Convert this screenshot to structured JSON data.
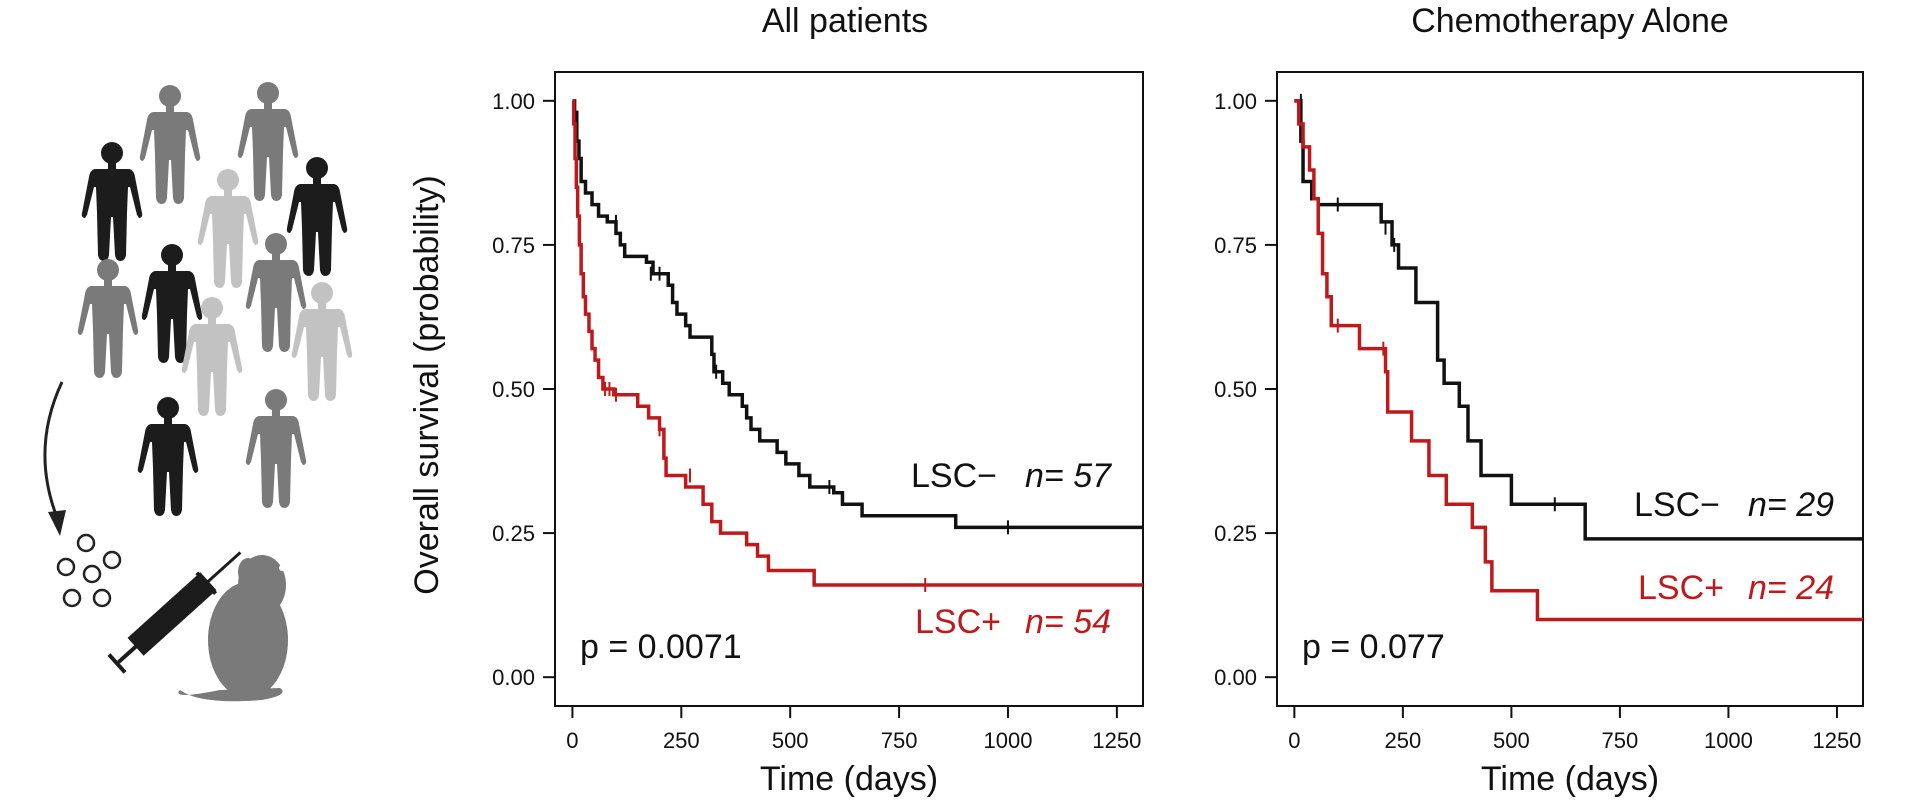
{
  "chart_data": [
    {
      "type": "line",
      "subtype": "kaplan-meier",
      "title": "All patients",
      "xlabel": "Time (days)",
      "ylabel": "Overall survival (probability)",
      "xlim": [
        -40,
        1310
      ],
      "ylim": [
        -0.05,
        1.05
      ],
      "xticks": [
        0,
        250,
        500,
        750,
        1000,
        1250
      ],
      "xtick_labels": [
        "0",
        "250",
        "500",
        "750",
        "1000",
        "1250"
      ],
      "yticks": [
        0,
        0.25,
        0.5,
        0.75,
        1.0
      ],
      "ytick_labels": [
        "0.00",
        "0.25",
        "0.50",
        "0.75",
        "1.00"
      ],
      "annotation": "p = 0.0071",
      "series": [
        {
          "name": "LSC−",
          "n_label": "n= 57",
          "color": "#111111",
          "steps": [
            [
              0,
              1.0
            ],
            [
              5,
              0.98
            ],
            [
              10,
              0.93
            ],
            [
              15,
              0.9
            ],
            [
              20,
              0.86
            ],
            [
              30,
              0.84
            ],
            [
              45,
              0.82
            ],
            [
              60,
              0.8
            ],
            [
              80,
              0.79
            ],
            [
              100,
              0.77
            ],
            [
              110,
              0.75
            ],
            [
              120,
              0.73
            ],
            [
              170,
              0.72
            ],
            [
              185,
              0.7
            ],
            [
              220,
              0.68
            ],
            [
              230,
              0.65
            ],
            [
              240,
              0.63
            ],
            [
              260,
              0.61
            ],
            [
              270,
              0.59
            ],
            [
              320,
              0.56
            ],
            [
              325,
              0.53
            ],
            [
              345,
              0.51
            ],
            [
              360,
              0.49
            ],
            [
              390,
              0.47
            ],
            [
              400,
              0.45
            ],
            [
              410,
              0.43
            ],
            [
              430,
              0.41
            ],
            [
              470,
              0.39
            ],
            [
              490,
              0.37
            ],
            [
              520,
              0.35
            ],
            [
              545,
              0.33
            ],
            [
              600,
              0.32
            ],
            [
              620,
              0.3
            ],
            [
              665,
              0.28
            ],
            [
              880,
              0.26
            ],
            [
              1310,
              0.26
            ]
          ],
          "censored": [
            [
              100,
              0.79
            ],
            [
              180,
              0.7
            ],
            [
              200,
              0.7
            ],
            [
              330,
              0.53
            ],
            [
              590,
              0.33
            ],
            [
              1000,
              0.26
            ]
          ]
        },
        {
          "name": "LSC+",
          "n_label": "n= 54",
          "color": "#c0191c",
          "steps": [
            [
              0,
              1.0
            ],
            [
              3,
              0.96
            ],
            [
              6,
              0.9
            ],
            [
              9,
              0.85
            ],
            [
              12,
              0.8
            ],
            [
              16,
              0.75
            ],
            [
              20,
              0.7
            ],
            [
              25,
              0.66
            ],
            [
              30,
              0.63
            ],
            [
              38,
              0.6
            ],
            [
              45,
              0.57
            ],
            [
              52,
              0.55
            ],
            [
              60,
              0.52
            ],
            [
              70,
              0.5
            ],
            [
              95,
              0.49
            ],
            [
              150,
              0.47
            ],
            [
              175,
              0.45
            ],
            [
              200,
              0.43
            ],
            [
              210,
              0.38
            ],
            [
              215,
              0.35
            ],
            [
              260,
              0.33
            ],
            [
              300,
              0.3
            ],
            [
              320,
              0.27
            ],
            [
              340,
              0.25
            ],
            [
              400,
              0.23
            ],
            [
              425,
              0.21
            ],
            [
              450,
              0.185
            ],
            [
              555,
              0.16
            ],
            [
              1310,
              0.16
            ]
          ],
          "censored": [
            [
              75,
              0.5
            ],
            [
              85,
              0.5
            ],
            [
              100,
              0.49
            ],
            [
              200,
              0.43
            ],
            [
              270,
              0.35
            ],
            [
              810,
              0.16
            ]
          ]
        }
      ]
    },
    {
      "type": "line",
      "subtype": "kaplan-meier",
      "title": "Chemotherapy Alone",
      "xlabel": "Time (days)",
      "ylabel": "",
      "xlim": [
        -40,
        1310
      ],
      "ylim": [
        -0.05,
        1.05
      ],
      "xticks": [
        0,
        250,
        500,
        750,
        1000,
        1250
      ],
      "xtick_labels": [
        "0",
        "250",
        "500",
        "750",
        "1000",
        "1250"
      ],
      "yticks": [
        0,
        0.25,
        0.5,
        0.75,
        1.0
      ],
      "ytick_labels": [
        "0.00",
        "0.25",
        "0.50",
        "0.75",
        "1.00"
      ],
      "annotation": "p = 0.077",
      "series": [
        {
          "name": "LSC−",
          "n_label": "n= 29",
          "color": "#111111",
          "steps": [
            [
              0,
              1.0
            ],
            [
              15,
              0.93
            ],
            [
              20,
              0.86
            ],
            [
              40,
              0.83
            ],
            [
              55,
              0.82
            ],
            [
              200,
              0.79
            ],
            [
              225,
              0.75
            ],
            [
              240,
              0.71
            ],
            [
              280,
              0.65
            ],
            [
              330,
              0.55
            ],
            [
              345,
              0.51
            ],
            [
              380,
              0.47
            ],
            [
              400,
              0.41
            ],
            [
              430,
              0.35
            ],
            [
              500,
              0.3
            ],
            [
              670,
              0.24
            ],
            [
              1310,
              0.24
            ]
          ],
          "censored": [
            [
              15,
              1.0
            ],
            [
              100,
              0.82
            ],
            [
              210,
              0.78
            ],
            [
              230,
              0.75
            ],
            [
              600,
              0.3
            ]
          ]
        },
        {
          "name": "LSC+",
          "n_label": "n= 24",
          "color": "#c0191c",
          "steps": [
            [
              0,
              1.0
            ],
            [
              10,
              0.96
            ],
            [
              20,
              0.92
            ],
            [
              35,
              0.88
            ],
            [
              45,
              0.83
            ],
            [
              55,
              0.77
            ],
            [
              65,
              0.7
            ],
            [
              75,
              0.66
            ],
            [
              85,
              0.61
            ],
            [
              150,
              0.57
            ],
            [
              210,
              0.53
            ],
            [
              215,
              0.46
            ],
            [
              270,
              0.41
            ],
            [
              310,
              0.35
            ],
            [
              350,
              0.3
            ],
            [
              410,
              0.26
            ],
            [
              440,
              0.2
            ],
            [
              455,
              0.15
            ],
            [
              560,
              0.1
            ],
            [
              1310,
              0.1
            ]
          ],
          "censored": [
            [
              100,
              0.61
            ],
            [
              205,
              0.57
            ]
          ]
        }
      ]
    }
  ],
  "illustration": {
    "description_icons": [
      "human-silhouette",
      "arrow",
      "cells",
      "syringe",
      "mouse"
    ]
  }
}
